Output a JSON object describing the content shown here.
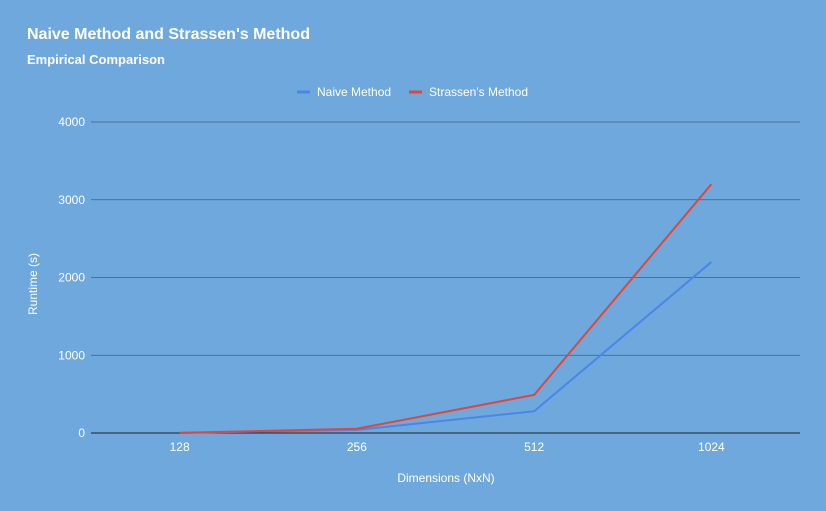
{
  "chart_data": {
    "type": "line",
    "title": "Naive Method and Strassen's Method",
    "subtitle": "Empirical Comparison",
    "xlabel": "Dimensions (NxN)",
    "ylabel": "Runtime (s)",
    "categories": [
      "128",
      "256",
      "512",
      "1024"
    ],
    "ylim": [
      0,
      4000
    ],
    "yticks": [
      0,
      1000,
      2000,
      3000,
      4000
    ],
    "grid": true,
    "legend_position": "top",
    "background": "#6fa8dc",
    "series": [
      {
        "name": "Naive Method",
        "color": "#4a86e8",
        "values": [
          1,
          40,
          280,
          2200
        ]
      },
      {
        "name": "Strassen's Method",
        "color": "#e0463a",
        "values": [
          1,
          55,
          490,
          3200
        ]
      }
    ]
  }
}
